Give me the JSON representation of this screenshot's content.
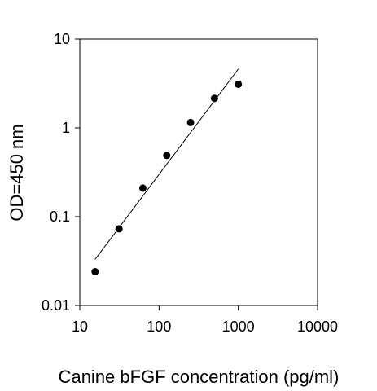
{
  "chart_data": {
    "type": "scatter",
    "xlabel": "Canine bFGF concentration (pg/ml)",
    "ylabel": "OD=450 nm",
    "x_scale": "log",
    "y_scale": "log",
    "xlim": [
      10,
      10000
    ],
    "ylim": [
      0.01,
      10
    ],
    "x_ticks": [
      10,
      100,
      1000,
      10000
    ],
    "x_tick_labels": [
      "10",
      "100",
      "1000",
      "10000"
    ],
    "y_ticks": [
      0.01,
      0.1,
      1,
      10
    ],
    "y_tick_labels": [
      "0.01",
      "0.1",
      "1",
      "10"
    ],
    "grid": false,
    "legend": "none",
    "series": [
      {
        "x": [
          15.6,
          31.25,
          62.5,
          125,
          250,
          500,
          1000
        ],
        "y": [
          0.024,
          0.073,
          0.21,
          0.49,
          1.15,
          2.15,
          3.1
        ]
      }
    ],
    "fit_line": {
      "x": [
        15.6,
        1000
      ],
      "y": [
        0.033,
        4.6
      ]
    },
    "colors": {
      "marker": "#000000",
      "axis": "#000000",
      "fit_line": "#000000"
    }
  }
}
